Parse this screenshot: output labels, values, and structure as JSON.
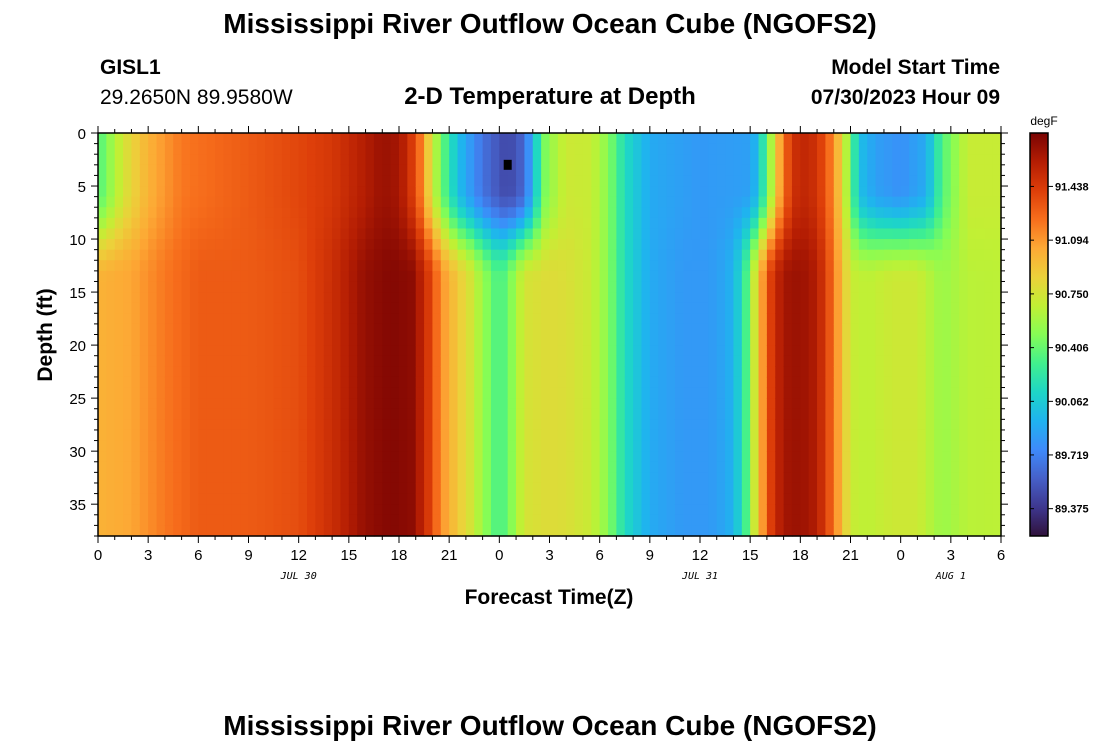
{
  "header": {
    "title": "Mississippi River Outflow Ocean Cube (NGOFS2)",
    "station_id": "GISL1",
    "station_coords": "29.2650N  89.9580W",
    "subtitle": "2-D Temperature at Depth",
    "model_start_label": "Model Start Time",
    "model_start_value": "07/30/2023 Hour 09",
    "footer_title": "Mississippi River Outflow Ocean Cube (NGOFS2)"
  },
  "colors": {
    "colormap": [
      "#30123b",
      "#3e378f",
      "#4660c8",
      "#3e8afa",
      "#1fb3ef",
      "#1ed6c6",
      "#41f08e",
      "#86fd55",
      "#c1f034",
      "#ecd13a",
      "#fda935",
      "#f76e1c",
      "#dd3e09",
      "#b41d03",
      "#7a0403"
    ]
  },
  "chart_data": {
    "type": "heatmap",
    "xlabel": "Forecast Time(Z)",
    "ylabel": "Depth (ft)",
    "unit_label": "degF",
    "xlim": [
      0,
      54
    ],
    "ylim": [
      0,
      38
    ],
    "y_inverted": true,
    "x_ticks": [
      0,
      3,
      6,
      9,
      12,
      15,
      18,
      21,
      24,
      27,
      30,
      33,
      36,
      39,
      42,
      45,
      48,
      51,
      54
    ],
    "x_tick_labels": [
      "0",
      "3",
      "6",
      "9",
      "12",
      "15",
      "18",
      "21",
      "0",
      "3",
      "6",
      "9",
      "12",
      "15",
      "18",
      "21",
      "0",
      "3",
      "6"
    ],
    "y_ticks": [
      0,
      5,
      10,
      15,
      20,
      25,
      30,
      35
    ],
    "y_tick_labels": [
      "0",
      "5",
      "10",
      "15",
      "20",
      "25",
      "30",
      "35"
    ],
    "date_labels": [
      {
        "x": 12,
        "text": "JUL 30"
      },
      {
        "x": 36,
        "text": "JUL 31"
      },
      {
        "x": 51,
        "text": "AUG 1"
      }
    ],
    "colorbar_range": [
      89.2,
      91.78
    ],
    "colorbar_labels": [
      "91.438",
      "91.094",
      "90.750",
      "90.406",
      "90.062",
      "89.719",
      "89.375"
    ],
    "colorbar_ticks": [
      91.438,
      91.094,
      90.75,
      90.406,
      90.062,
      89.719,
      89.375
    ],
    "marker": {
      "x": 24.5,
      "y": 3
    },
    "surface_profile": [
      [
        0,
        90.33
      ],
      [
        1.5,
        90.75
      ],
      [
        3,
        91.0
      ],
      [
        5,
        91.2
      ],
      [
        9,
        91.3
      ],
      [
        12,
        91.38
      ],
      [
        14,
        91.45
      ],
      [
        16,
        91.6
      ],
      [
        17,
        91.68
      ],
      [
        17.8,
        91.65
      ],
      [
        18.5,
        91.55
      ],
      [
        19.3,
        91.2
      ],
      [
        19.8,
        90.85
      ],
      [
        20.5,
        90.45
      ],
      [
        21.5,
        90.0
      ],
      [
        23,
        89.65
      ],
      [
        24.5,
        89.45
      ],
      [
        25.5,
        89.6
      ],
      [
        26.2,
        90.1
      ],
      [
        26.8,
        90.5
      ],
      [
        28,
        90.72
      ],
      [
        29.5,
        90.7
      ],
      [
        30.5,
        90.5
      ],
      [
        31.5,
        90.15
      ],
      [
        33,
        89.9
      ],
      [
        36,
        89.82
      ],
      [
        39,
        89.85
      ],
      [
        39.5,
        90.0
      ],
      [
        40,
        90.4
      ],
      [
        40.6,
        90.9
      ],
      [
        41,
        91.25
      ],
      [
        41.7,
        91.5
      ],
      [
        42.5,
        91.55
      ],
      [
        43.5,
        91.35
      ],
      [
        44.5,
        90.85
      ],
      [
        45.5,
        90.0
      ],
      [
        46.5,
        89.85
      ],
      [
        48,
        89.78
      ],
      [
        49.5,
        89.9
      ],
      [
        50.5,
        90.35
      ],
      [
        52,
        90.7
      ],
      [
        54,
        90.7
      ]
    ],
    "deep_profile": [
      [
        0,
        91.0
      ],
      [
        2,
        91.05
      ],
      [
        4,
        91.2
      ],
      [
        6,
        91.3
      ],
      [
        9,
        91.3
      ],
      [
        12,
        91.35
      ],
      [
        14,
        91.5
      ],
      [
        16,
        91.7
      ],
      [
        17.5,
        91.75
      ],
      [
        18.8,
        91.72
      ],
      [
        19.6,
        91.5
      ],
      [
        20.6,
        91.1
      ],
      [
        21.5,
        90.9
      ],
      [
        22.3,
        90.75
      ],
      [
        23,
        90.55
      ],
      [
        24,
        90.3
      ],
      [
        24.6,
        90.45
      ],
      [
        25.5,
        90.75
      ],
      [
        27,
        90.8
      ],
      [
        28,
        90.78
      ],
      [
        29.5,
        90.7
      ],
      [
        30.5,
        90.5
      ],
      [
        31.5,
        90.15
      ],
      [
        33,
        89.9
      ],
      [
        35,
        89.82
      ],
      [
        36.5,
        89.82
      ],
      [
        37.5,
        89.88
      ],
      [
        38,
        89.95
      ],
      [
        38.6,
        90.2
      ],
      [
        39.1,
        90.6
      ],
      [
        39.6,
        91.0
      ],
      [
        40.3,
        91.45
      ],
      [
        41,
        91.65
      ],
      [
        42,
        91.68
      ],
      [
        43,
        91.6
      ],
      [
        43.8,
        91.3
      ],
      [
        44.5,
        90.95
      ],
      [
        45,
        90.7
      ],
      [
        46,
        90.66
      ],
      [
        47.5,
        90.72
      ],
      [
        49,
        90.72
      ],
      [
        50.5,
        90.55
      ],
      [
        52,
        90.65
      ],
      [
        54,
        90.66
      ]
    ]
  }
}
